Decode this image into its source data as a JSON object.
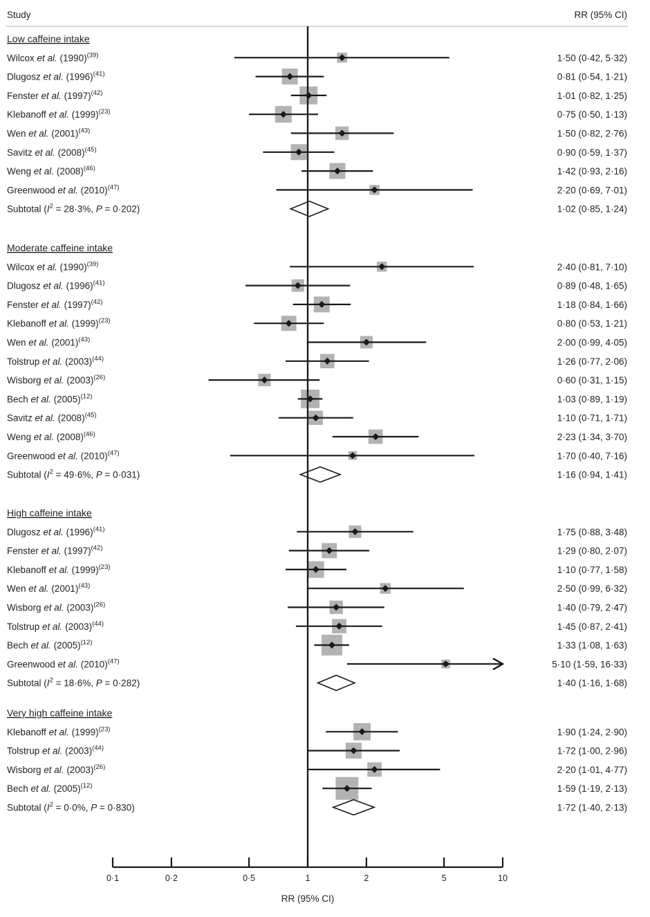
{
  "chart_data": {
    "type": "forest",
    "header": {
      "study": "Study",
      "effect": "RR (95% CI)"
    },
    "xlabel": "RR (95% CI)",
    "x_scale": "log",
    "xlim": [
      0.1,
      10
    ],
    "x_ticks": [
      0.1,
      0.2,
      0.5,
      1,
      2,
      5,
      10
    ],
    "x_tick_labels": [
      "0·1",
      "0·2",
      "0·5",
      "1",
      "2",
      "5",
      "10"
    ],
    "reference_line": 1,
    "groups": [
      {
        "name": "Low caffeine intake",
        "studies": [
          {
            "author": "Wilcox",
            "year": "(1990)",
            "ref": "(39)",
            "rr": 1.5,
            "lo": 0.42,
            "hi": 5.32,
            "weight": 1,
            "label": "1·50 (0·42, 5·32)"
          },
          {
            "author": "Dlugosz",
            "year": "(1996)",
            "ref": "(41)",
            "rr": 0.81,
            "lo": 0.54,
            "hi": 1.21,
            "weight": 4,
            "label": "0·81 (0·54, 1·21)"
          },
          {
            "author": "Fenster",
            "year": "(1997)",
            "ref": "(42)",
            "rr": 1.01,
            "lo": 0.82,
            "hi": 1.25,
            "weight": 5.5,
            "label": "1·01 (0·82, 1·25)"
          },
          {
            "author": "Klebanoff",
            "year": "(1999)",
            "ref": "(23)",
            "rr": 0.75,
            "lo": 0.5,
            "hi": 1.13,
            "weight": 4.5,
            "label": "0·75 (0·50, 1·13)"
          },
          {
            "author": "Wen",
            "year": "(2001)",
            "ref": "(43)",
            "rr": 1.5,
            "lo": 0.82,
            "hi": 2.76,
            "weight": 2.5,
            "label": "1·50 (0·82, 2·76)"
          },
          {
            "author": "Savitz",
            "year": "(2008)",
            "ref": "(45)",
            "rr": 0.9,
            "lo": 0.59,
            "hi": 1.37,
            "weight": 4,
            "label": "0·90 (0·59, 1·37)"
          },
          {
            "author": "Weng",
            "year": "(2008)",
            "ref": "(46)",
            "rr": 1.42,
            "lo": 0.93,
            "hi": 2.16,
            "weight": 4,
            "label": "1·42 (0·93, 2·16)"
          },
          {
            "author": "Greenwood",
            "year": "(2010)",
            "ref": "(47)",
            "rr": 2.2,
            "lo": 0.69,
            "hi": 7.01,
            "weight": 1,
            "label": "2·20 (0·69, 7·01)"
          }
        ],
        "subtotal": {
          "text_prefix": "Subtotal (",
          "i2_symbol": "I",
          "i2_sup": "2",
          "i2_text": " = 28·3%, ",
          "p_symbol": "P",
          "p_text": " = 0·202)",
          "rr": 1.02,
          "lo": 0.85,
          "hi": 1.24,
          "label": "1·02 (0·85, 1·24)"
        }
      },
      {
        "name": "Moderate caffeine intake",
        "studies": [
          {
            "author": "Wilcox",
            "year": "(1990)",
            "ref": "(39)",
            "rr": 2.4,
            "lo": 0.81,
            "hi": 7.1,
            "weight": 1,
            "label": "2·40 (0·81, 7·10)"
          },
          {
            "author": "Dlugosz",
            "year": "(1996)",
            "ref": "(41)",
            "rr": 0.89,
            "lo": 0.48,
            "hi": 1.65,
            "weight": 2,
            "label": "0·89 (0·48, 1·65)"
          },
          {
            "author": "Fenster",
            "year": "(1997)",
            "ref": "(42)",
            "rr": 1.18,
            "lo": 0.84,
            "hi": 1.66,
            "weight": 4,
            "label": "1·18 (0·84, 1·66)"
          },
          {
            "author": "Klebanoff",
            "year": "(1999)",
            "ref": "(23)",
            "rr": 0.8,
            "lo": 0.53,
            "hi": 1.21,
            "weight": 3.5,
            "label": "0·80 (0·53, 1·21)"
          },
          {
            "author": "Wen",
            "year": "(2001)",
            "ref": "(43)",
            "rr": 2.0,
            "lo": 0.99,
            "hi": 4.05,
            "weight": 2,
            "label": "2·00 (0·99, 4·05)"
          },
          {
            "author": "Tolstrup",
            "year": "(2003)",
            "ref": "(44)",
            "rr": 1.26,
            "lo": 0.77,
            "hi": 2.06,
            "weight": 3,
            "label": "1·26 (0·77, 2·06)"
          },
          {
            "author": "Wisborg",
            "year": "(2003)",
            "ref": "(26)",
            "rr": 0.6,
            "lo": 0.31,
            "hi": 1.15,
            "weight": 2,
            "label": "0·60 (0·31, 1·15)"
          },
          {
            "author": "Bech",
            "year": "(2005)",
            "ref": "(12)",
            "rr": 1.03,
            "lo": 0.89,
            "hi": 1.19,
            "weight": 6,
            "label": "1·03 (0·89, 1·19)"
          },
          {
            "author": "Savitz",
            "year": "(2008)",
            "ref": "(45)",
            "rr": 1.1,
            "lo": 0.71,
            "hi": 1.71,
            "weight": 3,
            "label": "1·10 (0·71, 1·71)"
          },
          {
            "author": "Weng",
            "year": "(2008)",
            "ref": "(46)",
            "rr": 2.23,
            "lo": 1.34,
            "hi": 3.7,
            "weight": 3,
            "label": "2·23 (1·34, 3·70)"
          },
          {
            "author": "Greenwood",
            "year": "(2010)",
            "ref": "(47)",
            "rr": 1.7,
            "lo": 0.4,
            "hi": 7.16,
            "weight": 0.6,
            "label": "1·70 (0·40, 7·16)"
          }
        ],
        "subtotal": {
          "text_prefix": "Subtotal (",
          "i2_symbol": "I",
          "i2_sup": "2",
          "i2_text": " = 49·6%, ",
          "p_symbol": "P",
          "p_text": " = 0·031)",
          "rr": 1.16,
          "lo": 0.94,
          "hi": 1.41,
          "label": "1·16 (0·94, 1·41)"
        }
      },
      {
        "name": "High caffeine intake",
        "studies": [
          {
            "author": "Dlugosz",
            "year": "(1996)",
            "ref": "(41)",
            "rr": 1.75,
            "lo": 0.88,
            "hi": 3.48,
            "weight": 2,
            "label": "1·75 (0·88, 3·48)"
          },
          {
            "author": "Fenster",
            "year": "(1997)",
            "ref": "(42)",
            "rr": 1.29,
            "lo": 0.8,
            "hi": 2.07,
            "weight": 3.5,
            "label": "1·29 (0·80, 2·07)"
          },
          {
            "author": "Klebanoff",
            "year": "(1999)",
            "ref": "(23)",
            "rr": 1.1,
            "lo": 0.77,
            "hi": 1.58,
            "weight": 4.5,
            "label": "1·10 (0·77, 1·58)"
          },
          {
            "author": "Wen",
            "year": "(2001)",
            "ref": "(43)",
            "rr": 2.5,
            "lo": 0.99,
            "hi": 6.32,
            "weight": 1.2,
            "label": "2·50 (0·99, 6·32)"
          },
          {
            "author": "Wisborg",
            "year": "(2003)",
            "ref": "(26)",
            "rr": 1.4,
            "lo": 0.79,
            "hi": 2.47,
            "weight": 2.5,
            "label": "1·40 (0·79, 2·47)"
          },
          {
            "author": "Tolstrup",
            "year": "(2003)",
            "ref": "(44)",
            "rr": 1.45,
            "lo": 0.87,
            "hi": 2.41,
            "weight": 3,
            "label": "1·45 (0·87, 2·41)"
          },
          {
            "author": "Bech",
            "year": "(2005)",
            "ref": "(12)",
            "rr": 1.33,
            "lo": 1.08,
            "hi": 1.63,
            "weight": 8,
            "label": "1·33 (1·08, 1·63)"
          },
          {
            "author": "Greenwood",
            "year": "(2010)",
            "ref": "(47)",
            "rr": 5.1,
            "lo": 1.59,
            "hi": 16.33,
            "weight": 0.6,
            "label": "5·10 (1·59, 16·33)",
            "arrow": true
          }
        ],
        "subtotal": {
          "text_prefix": "Subtotal (",
          "i2_symbol": "I",
          "i2_sup": "2",
          "i2_text": " = 18·6%, ",
          "p_symbol": "P",
          "p_text": " = 0·282)",
          "rr": 1.4,
          "lo": 1.16,
          "hi": 1.68,
          "label": "1·40 (1·16, 1·68)"
        }
      },
      {
        "name": "Very high caffeine intake",
        "studies": [
          {
            "author": "Klebanoff",
            "year": "(1999)",
            "ref": "(23)",
            "rr": 1.9,
            "lo": 1.24,
            "hi": 2.9,
            "weight": 5,
            "label": "1·90 (1·24, 2·90)"
          },
          {
            "author": "Tolstrup",
            "year": "(2003)",
            "ref": "(44)",
            "rr": 1.72,
            "lo": 1.0,
            "hi": 2.96,
            "weight": 4,
            "label": "1·72 (1·00, 2·96)"
          },
          {
            "author": "Wisborg",
            "year": "(2003)",
            "ref": "(26)",
            "rr": 2.2,
            "lo": 1.01,
            "hi": 4.77,
            "weight": 3,
            "label": "2·20 (1·01, 4·77)"
          },
          {
            "author": "Bech",
            "year": "(2005)",
            "ref": "(12)",
            "rr": 1.59,
            "lo": 1.19,
            "hi": 2.13,
            "weight": 10,
            "label": "1·59 (1·19, 2·13)"
          }
        ],
        "subtotal": {
          "text_prefix": "Subtotal (",
          "i2_symbol": "I",
          "i2_sup": "2",
          "i2_text": " = 0·0%, ",
          "p_symbol": "P",
          "p_text": " = 0·830)",
          "rr": 1.72,
          "lo": 1.4,
          "hi": 2.13,
          "label": "1·72 (1·40, 2·13)"
        }
      }
    ],
    "et_al_text": " et al.",
    "colors": {
      "box": "#b3b3b3",
      "line": "#1a1a1a",
      "diamond_fill": "#ffffff",
      "text": "#222222",
      "rule": "#cccccc"
    }
  }
}
